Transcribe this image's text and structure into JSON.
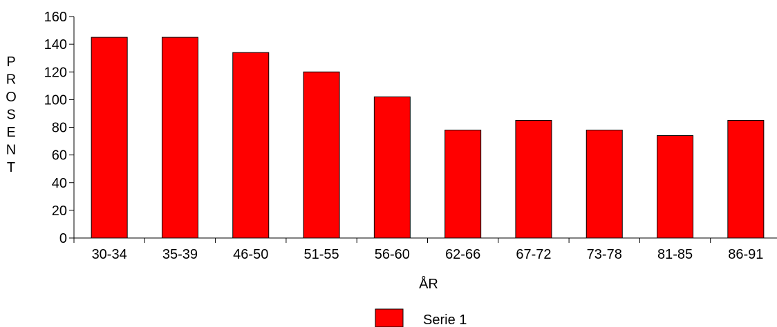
{
  "chart_data": {
    "type": "bar",
    "categories": [
      "30-34",
      "35-39",
      "46-50",
      "51-55",
      "56-60",
      "62-66",
      "67-72",
      "73-78",
      "81-85",
      "86-91"
    ],
    "series": [
      {
        "name": "Serie 1",
        "values": [
          145,
          145,
          134,
          120,
          102,
          78,
          85,
          78,
          74,
          85
        ],
        "color": "#ff0000"
      }
    ],
    "xlabel": "ÅR",
    "ylabel": "PROSENT",
    "ylim": [
      0,
      160
    ],
    "yticks": [
      0,
      20,
      40,
      60,
      80,
      100,
      120,
      140,
      160
    ],
    "grid": false,
    "legend_position": "bottom"
  }
}
